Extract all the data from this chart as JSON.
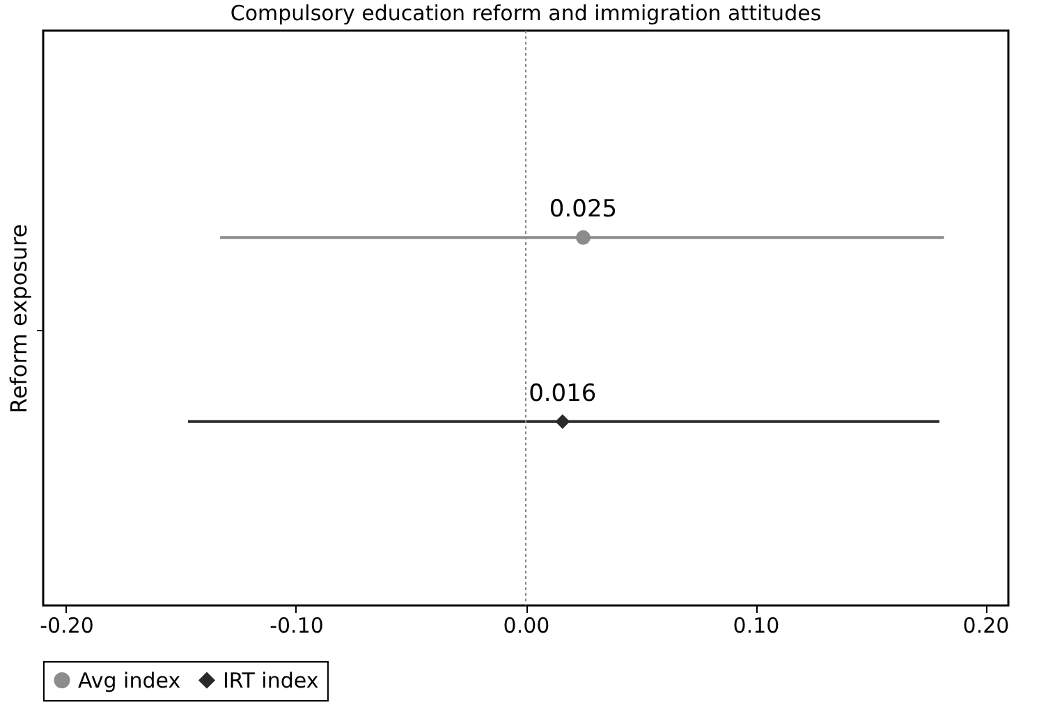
{
  "chart_data": {
    "type": "scatter",
    "orientation": "horizontal",
    "title": "Compulsory education reform and immigration attitudes",
    "ylabel": "Reform exposure",
    "categories": [
      null
    ],
    "series": [
      {
        "name": "Avg index",
        "color": "#8c8c8c",
        "marker": "circle",
        "values": [
          0.025
        ],
        "errors": [
          [
            -0.133,
            0.182
          ]
        ]
      },
      {
        "name": "IRT index",
        "color": "#2a2a2a",
        "marker": "diamond",
        "values": [
          0.016
        ],
        "errors": [
          [
            -0.147,
            0.18
          ]
        ]
      }
    ],
    "xlim": [
      -0.21,
      0.21
    ],
    "xticks": [
      {
        "value": -0.2,
        "label": "-0.20"
      },
      {
        "value": -0.1,
        "label": "-0.10"
      },
      {
        "value": 0,
        "label": "0.00"
      },
      {
        "value": 0.1,
        "label": "0.10"
      },
      {
        "value": 0.2,
        "label": "0.20"
      }
    ],
    "ref_lines": [
      {
        "axis": "x",
        "value": 0,
        "line_style": "dotted",
        "color": "#888888"
      }
    ],
    "data_labels": true,
    "grid": false,
    "legend": "bottom"
  }
}
